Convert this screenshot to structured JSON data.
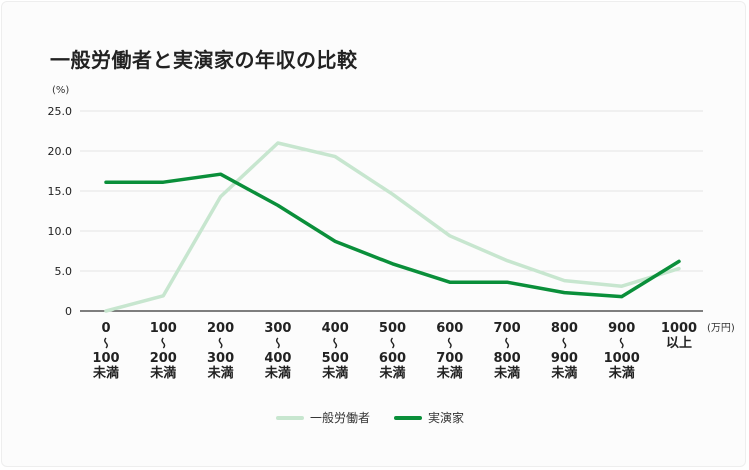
{
  "title": "一般労働者と実演家の年収の比較",
  "chart_data": {
    "type": "line",
    "title": "一般労働者と実演家の年収の比較",
    "ylabel": "(%)",
    "xlabel": "(万円)",
    "ylim": [
      0,
      25
    ],
    "yticks": [
      "0",
      "5.0",
      "10.0",
      "15.0",
      "20.0",
      "25.0"
    ],
    "grid": true,
    "legend_position": "bottom",
    "categories": [
      [
        "0",
        "〜",
        "100",
        "未満"
      ],
      [
        "100",
        "〜",
        "200",
        "未満"
      ],
      [
        "200",
        "〜",
        "300",
        "未満"
      ],
      [
        "300",
        "〜",
        "400",
        "未満"
      ],
      [
        "400",
        "〜",
        "500",
        "未満"
      ],
      [
        "500",
        "〜",
        "600",
        "未満"
      ],
      [
        "600",
        "〜",
        "700",
        "未満"
      ],
      [
        "700",
        "〜",
        "800",
        "未満"
      ],
      [
        "800",
        "〜",
        "900",
        "未満"
      ],
      [
        "900",
        "〜",
        "1000",
        "未満"
      ],
      [
        "1000",
        "以上"
      ]
    ],
    "series": [
      {
        "name": "一般労働者",
        "color": "#c7e6cf",
        "values": [
          0,
          1.9,
          14.3,
          21.0,
          19.3,
          14.6,
          9.4,
          6.3,
          3.8,
          3.1,
          5.3
        ]
      },
      {
        "name": "実演家",
        "color": "#0a8f3a",
        "values": [
          16.1,
          16.1,
          17.1,
          13.2,
          8.7,
          5.9,
          3.6,
          3.6,
          2.3,
          1.8,
          6.2
        ]
      }
    ]
  }
}
